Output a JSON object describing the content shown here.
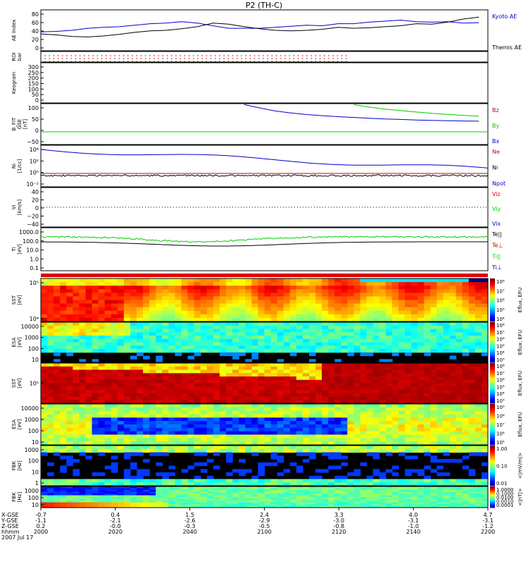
{
  "title": "P2 (TH-C)",
  "colors": {
    "red": "#e00000",
    "green": "#00cc00",
    "blue": "#0000cc",
    "black": "#000000"
  },
  "panels": [
    {
      "id": "ae",
      "ylabel": [
        "AE Index"
      ],
      "ticks": [
        "80",
        "60",
        "40",
        "20",
        "0"
      ],
      "legend": [
        {
          "text": "Kyoto AE",
          "color": "#0000cc"
        },
        {
          "text": "Themis AE",
          "color": "#000000"
        }
      ]
    },
    {
      "id": "roi",
      "ylabel": [
        "ROI",
        "bar"
      ],
      "ticks": [],
      "legend": []
    },
    {
      "id": "keo",
      "ylabel": [
        "Keogram"
      ],
      "ticks": [
        "300",
        "250",
        "200",
        "150",
        "100",
        "50",
        "0"
      ],
      "legend": []
    },
    {
      "id": "bfit",
      "ylabel": [
        "B_FIT",
        "GSE",
        "[nT]"
      ],
      "ticks": [
        "100",
        "50",
        "0",
        "−50"
      ],
      "legend": [
        {
          "text": "Bz",
          "color": "#cc0000"
        },
        {
          "text": "By",
          "color": "#00cc00"
        },
        {
          "text": "Bx",
          "color": "#0000cc"
        }
      ]
    },
    {
      "id": "ni",
      "ylabel": [
        "Ni",
        "[1/cc]"
      ],
      "ticks": [
        "10⁴",
        "10²",
        "10⁰",
        "10⁻²"
      ],
      "legend": [
        {
          "text": "Ne",
          "color": "#cc0000"
        },
        {
          "text": "Ni",
          "color": "#000000"
        },
        {
          "text": "Npot",
          "color": "#0000cc"
        }
      ]
    },
    {
      "id": "vi",
      "ylabel": [
        "Vi",
        "[km/s]"
      ],
      "ticks": [
        "40",
        "20",
        "0",
        "−20",
        "−40"
      ],
      "legend": [
        {
          "text": "Viz",
          "color": "#cc0000"
        },
        {
          "text": "Viy",
          "color": "#00cc00"
        },
        {
          "text": "Vix",
          "color": "#0000cc"
        }
      ]
    },
    {
      "id": "ti",
      "ylabel": [
        "Ti",
        "[eV]"
      ],
      "ticks": [
        "1000.0",
        "100.0",
        "10.0",
        "1.0",
        "0.1"
      ],
      "legend": [
        {
          "text": "Te||",
          "color": "#000000"
        },
        {
          "text": "Te⊥",
          "color": "#cc0000"
        },
        {
          "text": "Ti||",
          "color": "#00cc00"
        },
        {
          "text": "Ti⊥",
          "color": "#0000cc"
        }
      ]
    },
    {
      "id": "sst_i",
      "ylabel": [
        "SST",
        "[eV]"
      ],
      "ticks": [
        "10⁵",
        "10⁴"
      ],
      "legend": []
    },
    {
      "id": "esa_i",
      "ylabel": [
        "ESA",
        "[eV]"
      ],
      "ticks": [
        "10000",
        "1000",
        "100",
        "10"
      ],
      "legend": []
    },
    {
      "id": "sst_e",
      "ylabel": [
        "SST",
        "[eV]"
      ],
      "ticks": [
        "10⁵"
      ],
      "legend": []
    },
    {
      "id": "esa_e",
      "ylabel": [
        "ESA",
        "[eV]"
      ],
      "ticks": [
        "10000",
        "1000",
        "100",
        "10"
      ],
      "legend": []
    },
    {
      "id": "fbk1",
      "ylabel": [
        "FBK",
        "[Hz]"
      ],
      "ticks": [
        "1000",
        "100",
        "10",
        "1"
      ],
      "legend": []
    },
    {
      "id": "fbk2",
      "ylabel": [
        "FBK",
        "[Hz]"
      ],
      "ticks": [
        "1000",
        "100",
        "10"
      ],
      "legend": []
    }
  ],
  "colorbars": [
    {
      "panel": "sst_i",
      "label": "Eflux, EFU",
      "ticks": [
        "10⁸",
        "10⁷",
        "10⁶",
        "10⁵",
        "10⁴"
      ]
    },
    {
      "panel": "esa_i",
      "label": "Eflux, EFU",
      "ticks": [
        "10⁸",
        "10⁷",
        "10⁶",
        "10⁵",
        "10⁴",
        "10³"
      ]
    },
    {
      "panel": "sst_e",
      "label": "Eflux, EFU",
      "ticks": [
        "10⁸",
        "10⁷",
        "10⁶",
        "10⁵",
        "10⁴",
        "10³"
      ]
    },
    {
      "panel": "esa_e",
      "label": "Eflux, EFU",
      "ticks": [
        "10⁹",
        "10⁸",
        "10⁷",
        "10⁶",
        "10⁵"
      ]
    },
    {
      "panel": "fbk1",
      "label": "<|mV/m|>",
      "ticks": [
        "1.00",
        "0.10",
        "0.01"
      ]
    },
    {
      "panel": "fbk2",
      "label": "<|nT|>",
      "ticks": [
        "1.0000",
        "0.1000",
        "0.0100",
        "0.0010",
        "0.0001"
      ]
    }
  ],
  "xaxis": {
    "rowlabels": [
      "X-GSE",
      "Y-GSE",
      "Z-GSE",
      "hhmm",
      "2007 Jul 17"
    ],
    "columns": [
      {
        "x": "-0.7",
        "y": "-1.1",
        "z": "0.2",
        "t": "2000"
      },
      {
        "x": "0.4",
        "y": "-2.1",
        "z": "-0.0",
        "t": "2020"
      },
      {
        "x": "1.5",
        "y": "-2.6",
        "z": "-0.3",
        "t": "2040"
      },
      {
        "x": "2.4",
        "y": "-2.9",
        "z": "-0.5",
        "t": "2100"
      },
      {
        "x": "3.3",
        "y": "-3.0",
        "z": "-0.8",
        "t": "2120"
      },
      {
        "x": "4.0",
        "y": "-3.1",
        "z": "-1.0",
        "t": "2140"
      },
      {
        "x": "4.7",
        "y": "-3.1",
        "z": "-1.2",
        "t": "2200"
      }
    ]
  },
  "chart_data": {
    "type": "line",
    "title": "P2 (TH-C)",
    "x_range": [
      "2000",
      "2200"
    ],
    "x_ticks": [
      "2000",
      "2020",
      "2040",
      "2100",
      "2120",
      "2140",
      "2200"
    ],
    "series": [
      {
        "panel": "ae",
        "name": "Kyoto AE",
        "values": [
          37,
          38,
          40,
          44,
          46,
          47,
          50,
          53,
          54,
          57,
          54,
          49,
          44,
          44,
          44,
          46,
          48,
          50,
          49,
          53,
          53,
          56,
          58,
          60,
          57,
          56,
          57,
          54,
          55
        ]
      },
      {
        "panel": "ae",
        "name": "Themis AE",
        "values": [
          33,
          31,
          28,
          27,
          29,
          32,
          36,
          39,
          40,
          43,
          47,
          54,
          52,
          47,
          43,
          40,
          39,
          40,
          42,
          46,
          44,
          45,
          47,
          49,
          53,
          52,
          56,
          62,
          66
        ]
      },
      {
        "panel": "bfit",
        "name": "Bx",
        "values": [
          null,
          null,
          null,
          null,
          null,
          null,
          null,
          null,
          null,
          null,
          null,
          null,
          null,
          105,
          88,
          72,
          62,
          54,
          48,
          43,
          39,
          35,
          31,
          29,
          26,
          24,
          22,
          21,
          20
        ]
      },
      {
        "panel": "bfit",
        "name": "By",
        "values": [
          null,
          null,
          null,
          null,
          null,
          null,
          null,
          null,
          null,
          null,
          null,
          null,
          null,
          null,
          null,
          null,
          null,
          null,
          null,
          null,
          105,
          92,
          82,
          74,
          67,
          60,
          55,
          50,
          46
        ]
      }
    ],
    "x": [
      2000,
      2007,
      2014,
      2021,
      2028,
      2035,
      2042,
      2049,
      2056,
      2063,
      2070,
      2077,
      2084,
      2091,
      2098,
      2105,
      2112,
      2119,
      2126,
      2133,
      2140,
      2147,
      2154,
      2161,
      2168,
      2175,
      2182,
      2189,
      2196
    ],
    "spectrograms": [
      {
        "panel": "sst_i",
        "label": "SST [eV]"
      },
      {
        "panel": "esa_i",
        "label": "ESA [eV]"
      },
      {
        "panel": "sst_e",
        "label": "SST [eV]"
      },
      {
        "panel": "esa_e",
        "label": "ESA [eV]"
      },
      {
        "panel": "fbk1",
        "label": "FBK [Hz]"
      },
      {
        "panel": "fbk2",
        "label": "FBK [Hz]"
      }
    ]
  }
}
